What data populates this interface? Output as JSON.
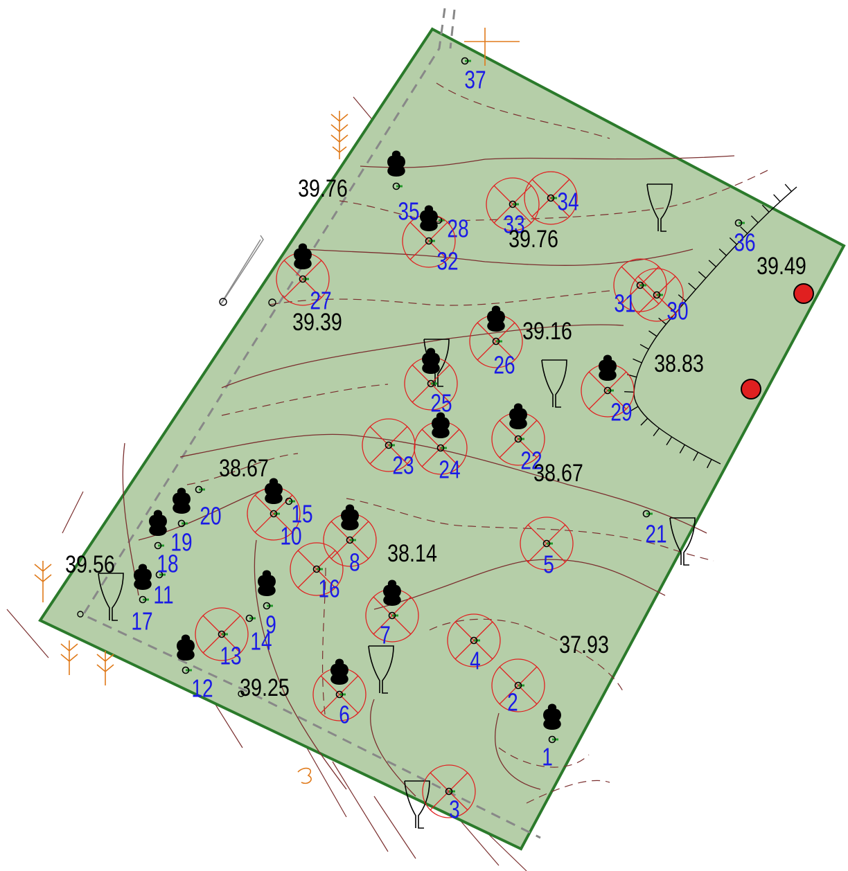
{
  "colors": {
    "plot_fill": "#b5cea8",
    "plot_border": "#2b7a2b",
    "tree": "#22992a",
    "tree_number": "#1a1ae6",
    "removal_mark": "#e02020",
    "contour": "#7a2e2e",
    "red_point": "#e02020",
    "orange_symbols": "#e07a1a"
  },
  "icons": {
    "deciduous": "deciduous-tree-icon",
    "conifer": "conifer-tree-icon",
    "lamp": "street-lamp-icon",
    "point": "red-point-icon"
  },
  "elevations": [
    "39.76",
    "39.76",
    "39.39",
    "39.16",
    "38.83",
    "39.49",
    "38.67",
    "38.67",
    "38.14",
    "37.93",
    "39.56",
    "39.25"
  ],
  "trees": [
    {
      "id": "1",
      "kind": "deciduous",
      "removed": false
    },
    {
      "id": "2",
      "kind": "conifer",
      "removed": true
    },
    {
      "id": "3",
      "kind": "conifer",
      "removed": true
    },
    {
      "id": "4",
      "kind": "conifer",
      "removed": true
    },
    {
      "id": "5",
      "kind": "conifer",
      "removed": true
    },
    {
      "id": "6",
      "kind": "deciduous",
      "removed": true
    },
    {
      "id": "7",
      "kind": "deciduous",
      "removed": true
    },
    {
      "id": "8",
      "kind": "deciduous",
      "removed": true
    },
    {
      "id": "9",
      "kind": "deciduous",
      "removed": false
    },
    {
      "id": "10",
      "kind": "deciduous",
      "removed": true
    },
    {
      "id": "11",
      "kind": "birch",
      "removed": false
    },
    {
      "id": "12",
      "kind": "deciduous",
      "removed": false
    },
    {
      "id": "13",
      "kind": "conifer",
      "removed": true
    },
    {
      "id": "14",
      "kind": "conifer",
      "removed": false
    },
    {
      "id": "15",
      "kind": "birch",
      "removed": false
    },
    {
      "id": "16",
      "kind": "conifer",
      "removed": true
    },
    {
      "id": "17",
      "kind": "deciduous",
      "removed": false
    },
    {
      "id": "18",
      "kind": "deciduous",
      "removed": false
    },
    {
      "id": "19",
      "kind": "deciduous",
      "removed": false
    },
    {
      "id": "20",
      "kind": "conifer",
      "removed": false
    },
    {
      "id": "21",
      "kind": "conifer",
      "removed": false
    },
    {
      "id": "22",
      "kind": "deciduous",
      "removed": true
    },
    {
      "id": "23",
      "kind": "conifer",
      "removed": true
    },
    {
      "id": "24",
      "kind": "deciduous",
      "removed": true
    },
    {
      "id": "25",
      "kind": "deciduous",
      "removed": true
    },
    {
      "id": "26",
      "kind": "deciduous",
      "removed": true
    },
    {
      "id": "27",
      "kind": "deciduous",
      "removed": true
    },
    {
      "id": "28",
      "kind": "conifer",
      "removed": false
    },
    {
      "id": "29",
      "kind": "deciduous",
      "removed": true
    },
    {
      "id": "30",
      "kind": "birch",
      "removed": true
    },
    {
      "id": "31",
      "kind": "conifer",
      "removed": true
    },
    {
      "id": "32",
      "kind": "deciduous",
      "removed": true
    },
    {
      "id": "33",
      "kind": "conifer",
      "removed": true
    },
    {
      "id": "34",
      "kind": "conifer",
      "removed": true
    },
    {
      "id": "35",
      "kind": "deciduous",
      "removed": false
    },
    {
      "id": "36",
      "kind": "conifer",
      "removed": false
    },
    {
      "id": "37",
      "kind": "conifer",
      "removed": false
    }
  ]
}
